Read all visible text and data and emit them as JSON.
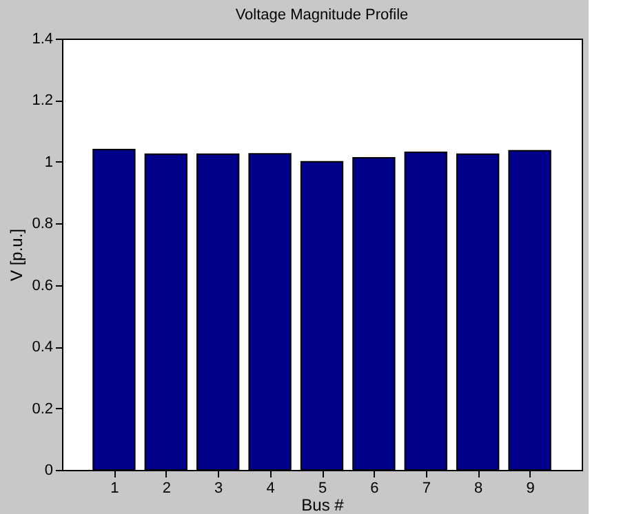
{
  "chart_data": {
    "type": "bar",
    "title": "Voltage Magnitude Profile",
    "xlabel": "Bus #",
    "ylabel": "V [p.u.]",
    "x": [
      1,
      2,
      3,
      4,
      5,
      6,
      7,
      8,
      9
    ],
    "values": [
      1.04,
      1.025,
      1.025,
      1.026,
      1.0,
      1.013,
      1.031,
      1.025,
      1.036
    ],
    "color": "#00008b",
    "xlim": [
      0,
      10
    ],
    "xticks": [
      1,
      2,
      3,
      4,
      5,
      6,
      7,
      8,
      9
    ],
    "ylim": [
      0,
      1.4
    ],
    "yticks": [
      0,
      0.2,
      0.4,
      0.6,
      0.8,
      1,
      1.2,
      1.4
    ],
    "grid": false
  }
}
